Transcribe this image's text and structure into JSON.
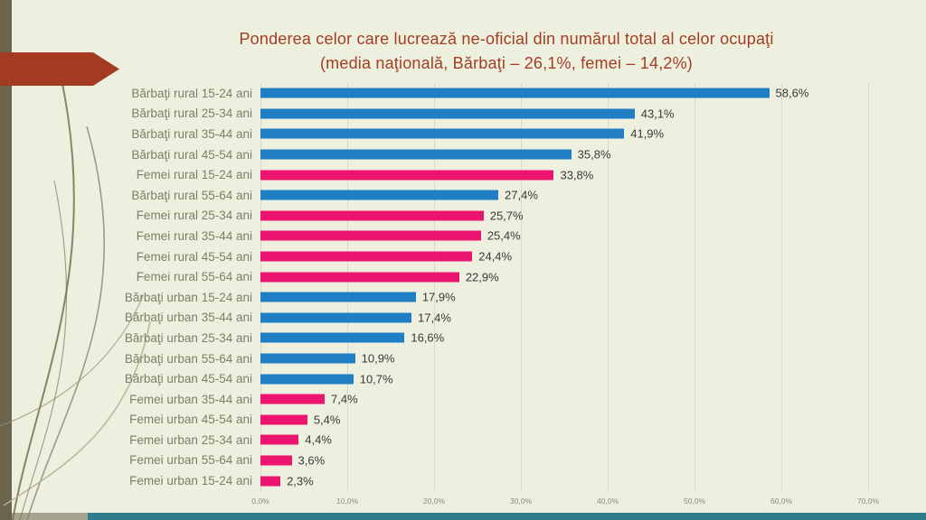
{
  "slide": {
    "title_line1": "Ponderea celor care lucrează ne-oficial din numărul total al celor ocupaţi",
    "title_line2": "(media naţională, Bărbaţi – 26,1%, femei – 14,2%)"
  },
  "colors": {
    "background": "#EDEFDF",
    "title": "#A33E23",
    "label": "#7F7F66",
    "value": "#3A3A3A",
    "grid": "#D8D8CC",
    "male_bar": "#1F7EC4",
    "female_bar": "#EB146E",
    "left_strip": "#6B654C",
    "bottom_bar": "#2F7D8C",
    "arrow": "#A43A22"
  },
  "chart_data": {
    "type": "bar",
    "orientation": "horizontal",
    "title": "Ponderea celor care lucrează ne-oficial din numărul total al celor ocupaţi (media naţională, Bărbaţi – 26,1%, femei – 14,2%)",
    "xlim": [
      0,
      70
    ],
    "grid": true,
    "legend": "none",
    "x_ticks": [
      "0,0%",
      "10,0%",
      "20,0%",
      "30,0%",
      "40,0%",
      "50,0%",
      "60,0%",
      "70,0%"
    ],
    "categories": [
      "Bărbaţi rural 15-24 ani",
      "Bărbaţi rural 25-34 ani",
      "Bărbaţi rural 35-44 ani",
      "Bărbaţi rural 45-54 ani",
      "Femei rural 15-24 ani",
      "Bărbaţi rural 55-64 ani",
      "Femei rural 25-34 ani",
      "Femei rural 35-44 ani",
      "Femei rural 45-54 ani",
      "Femei rural 55-64 ani",
      "Bărbaţi urban 15-24 ani",
      "Bărbaţi urban 35-44 ani",
      "Bărbaţi urban 25-34 ani",
      "Bărbaţi urban 55-64 ani",
      "Bărbaţi urban 45-54 ani",
      "Femei urban 35-44 ani",
      "Femei urban 45-54 ani",
      "Femei urban 25-34 ani",
      "Femei urban 55-64 ani",
      "Femei urban 15-24 ani"
    ],
    "values": [
      58.6,
      43.1,
      41.9,
      35.8,
      33.8,
      27.4,
      25.7,
      25.4,
      24.4,
      22.9,
      17.9,
      17.4,
      16.6,
      10.9,
      10.7,
      7.4,
      5.4,
      4.4,
      3.6,
      2.3
    ],
    "value_labels": [
      "58,6%",
      "43,1%",
      "41,9%",
      "35,8%",
      "33,8%",
      "27,4%",
      "25,7%",
      "25,4%",
      "24,4%",
      "22,9%",
      "17,9%",
      "17,4%",
      "16,6%",
      "10,9%",
      "10,7%",
      "7,4%",
      "5,4%",
      "4,4%",
      "3,6%",
      "2,3%"
    ],
    "groups": [
      "male",
      "male",
      "male",
      "male",
      "female",
      "male",
      "female",
      "female",
      "female",
      "female",
      "male",
      "male",
      "male",
      "male",
      "male",
      "female",
      "female",
      "female",
      "female",
      "female"
    ]
  }
}
